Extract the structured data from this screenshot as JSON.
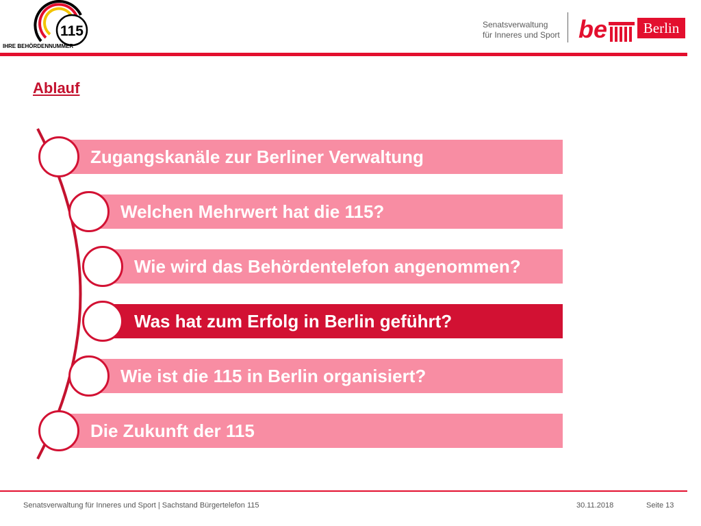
{
  "header": {
    "logo_number": "115",
    "logo_tagline": "IHRE BEHÖRDENNUMMER",
    "dept_line1": "Senatsverwaltung",
    "dept_line2": "für Inneres und Sport",
    "be_mark": "be",
    "berlin_label": "Berlin"
  },
  "title": "Ablauf",
  "agenda": [
    {
      "label": "Zugangskanäle zur Berliner Verwaltung",
      "active": false
    },
    {
      "label": "Welchen Mehrwert hat die 115?",
      "active": false
    },
    {
      "label": "Wie wird das Behördentelefon angenommen?",
      "active": false
    },
    {
      "label": "Was hat zum Erfolg in Berlin geführt?",
      "active": true
    },
    {
      "label": "Wie ist die 115 in Berlin organisiert?",
      "active": false
    },
    {
      "label": "Die Zukunft der 115",
      "active": false
    }
  ],
  "footer": {
    "source": "Senatsverwaltung für Inneres und Sport | Sachstand Bürgertelefon 115",
    "date": "30.11.2018",
    "page": "Seite 13"
  },
  "colors": {
    "accent_red": "#e30f2e",
    "bar_light": "#f88da3",
    "bar_active": "#d21133"
  }
}
